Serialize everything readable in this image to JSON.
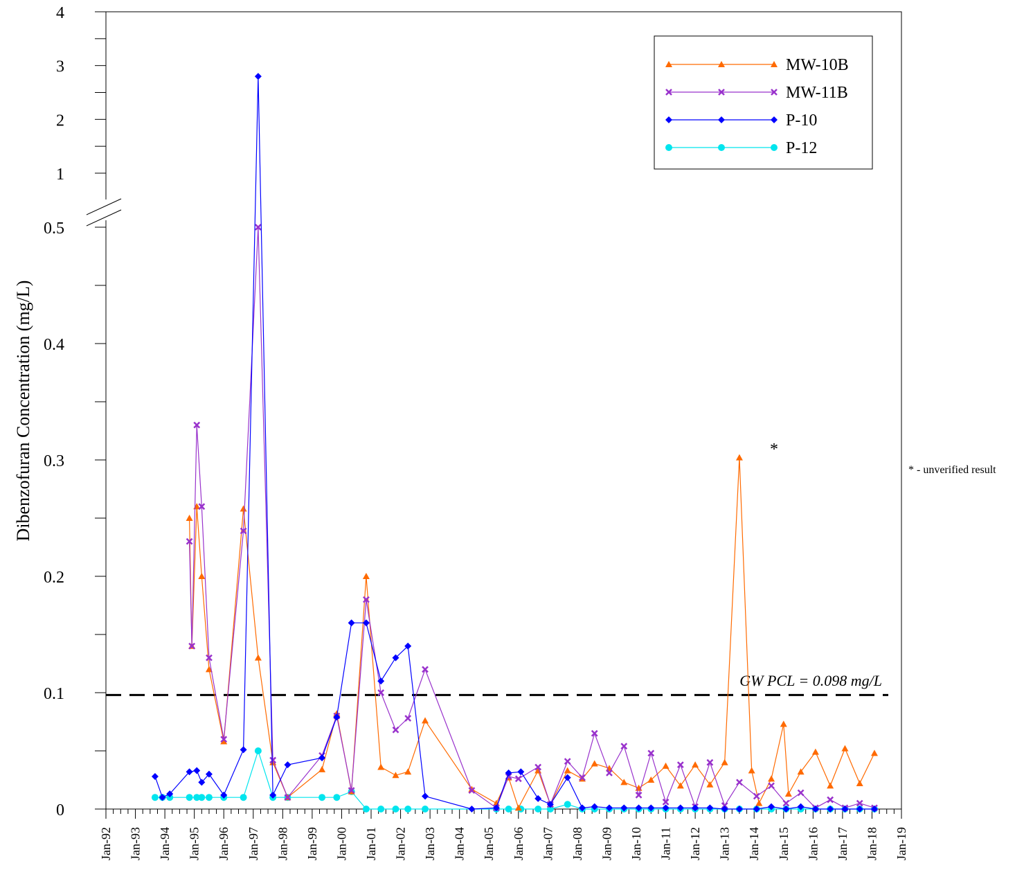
{
  "chart_data": {
    "type": "line",
    "ylabel": "Dibenzofuran Concentration (mg/L)",
    "y_ticks": [
      "0",
      "0.1",
      "0.2",
      "0.3",
      "0.4",
      "0.5",
      "1",
      "2",
      "3",
      "4"
    ],
    "axis_break": "between 0.5 and 1",
    "x_tick_labels": [
      "Jan-92",
      "Jan-93",
      "Jan-94",
      "Jan-95",
      "Jan-96",
      "Jan-97",
      "Jan-98",
      "Jan-99",
      "Jan-00",
      "Jan-01",
      "Jan-02",
      "Jan-03",
      "Jan-04",
      "Jan-05",
      "Jan-06",
      "Jan-07",
      "Jan-08",
      "Jan-09",
      "Jan-10",
      "Jan-11",
      "Jan-12",
      "Jan-13",
      "Jan-14",
      "Jan-15",
      "Jan-16",
      "Jan-17",
      "Jan-18",
      "Jan-19"
    ],
    "reference_line": {
      "value": 0.098,
      "label": "GW PCL = 0.098 mg/L"
    },
    "annotation": {
      "marker": "*",
      "note": "* - unverified result"
    },
    "legend_position": "top-right",
    "series": [
      {
        "name": "MW-10B",
        "color": "#FF6A00",
        "marker": "triangle",
        "points": [
          [
            "Nov-94",
            0.25
          ],
          [
            "Dec-94",
            0.14
          ],
          [
            "Feb-95",
            0.26
          ],
          [
            "Apr-95",
            0.2
          ],
          [
            "Jul-95",
            0.12
          ],
          [
            "Jan-96",
            0.058
          ],
          [
            "Sep-96",
            0.258
          ],
          [
            "Mar-97",
            0.13
          ],
          [
            "Sep-97",
            0.04
          ],
          [
            "Mar-98",
            0.01
          ],
          [
            "May-99",
            0.034
          ],
          [
            "Nov-99",
            0.082
          ],
          [
            "May-00",
            0.015
          ],
          [
            "Nov-00",
            0.2
          ],
          [
            "May-01",
            0.036
          ],
          [
            "Nov-01",
            0.029
          ],
          [
            "Apr-02",
            0.032
          ],
          [
            "Nov-02",
            0.076
          ],
          [
            "Jun-04",
            0.017
          ],
          [
            "Apr-05",
            0.005
          ],
          [
            "Sep-05",
            0.027
          ],
          [
            "Jan-06",
            0.001
          ],
          [
            "Sep-06",
            0.033
          ],
          [
            "Feb-07",
            0.004
          ],
          [
            "Sep-07",
            0.033
          ],
          [
            "Mar-08",
            0.026
          ],
          [
            "Aug-08",
            0.039
          ],
          [
            "Feb-09",
            0.035
          ],
          [
            "Aug-09",
            0.023
          ],
          [
            "Feb-10",
            0.018
          ],
          [
            "Jul-10",
            0.025
          ],
          [
            "Jan-11",
            0.037
          ],
          [
            "Jul-11",
            0.02
          ],
          [
            "Jan-12",
            0.038
          ],
          [
            "Jul-12",
            0.021
          ],
          [
            "Jan-13",
            0.04
          ],
          [
            "Jul-13",
            0.302
          ],
          [
            "Dec-13",
            0.033
          ],
          [
            "Mar-14",
            0.005
          ],
          [
            "Aug-14",
            0.026
          ],
          [
            "Jan-15",
            0.073
          ],
          [
            "Mar-15",
            0.013
          ],
          [
            "Aug-15",
            0.032
          ],
          [
            "Feb-16",
            0.049
          ],
          [
            "Aug-16",
            0.02
          ],
          [
            "Feb-17",
            0.052
          ],
          [
            "Aug-17",
            0.022
          ],
          [
            "Feb-18",
            0.048
          ]
        ]
      },
      {
        "name": "MW-11B",
        "color": "#9932CC",
        "marker": "x",
        "points": [
          [
            "Nov-94",
            0.23
          ],
          [
            "Dec-94",
            0.14
          ],
          [
            "Feb-95",
            0.33
          ],
          [
            "Apr-95",
            0.26
          ],
          [
            "Jul-95",
            0.13
          ],
          [
            "Jan-96",
            0.06
          ],
          [
            "Sep-96",
            0.239
          ],
          [
            "Mar-97",
            0.5
          ],
          [
            "Sep-97",
            0.042
          ],
          [
            "Mar-98",
            0.01
          ],
          [
            "May-99",
            0.046
          ],
          [
            "Nov-99",
            0.08
          ],
          [
            "May-00",
            0.016
          ],
          [
            "Nov-00",
            0.18
          ],
          [
            "May-01",
            0.1
          ],
          [
            "Nov-01",
            0.068
          ],
          [
            "Apr-02",
            0.078
          ],
          [
            "Nov-02",
            0.12
          ],
          [
            "Jun-04",
            0.016
          ],
          [
            "Apr-05",
            0.001
          ],
          [
            "Sep-05",
            0.028
          ],
          [
            "Jan-06",
            0.026
          ],
          [
            "Sep-06",
            0.036
          ],
          [
            "Feb-07",
            0.004
          ],
          [
            "Sep-07",
            0.041
          ],
          [
            "Mar-08",
            0.027
          ],
          [
            "Aug-08",
            0.065
          ],
          [
            "Feb-09",
            0.031
          ],
          [
            "Aug-09",
            0.054
          ],
          [
            "Feb-10",
            0.012
          ],
          [
            "Jul-10",
            0.048
          ],
          [
            "Jan-11",
            0.006
          ],
          [
            "Jul-11",
            0.038
          ],
          [
            "Jan-12",
            0.002
          ],
          [
            "Jul-12",
            0.04
          ],
          [
            "Jan-13",
            0.003
          ],
          [
            "Jul-13",
            0.023
          ],
          [
            "Feb-14",
            0.011
          ],
          [
            "Aug-14",
            0.02
          ],
          [
            "Feb-15",
            0.005
          ],
          [
            "Aug-15",
            0.014
          ],
          [
            "Feb-16",
            0.001
          ],
          [
            "Aug-16",
            0.008
          ],
          [
            "Feb-17",
            0.001
          ],
          [
            "Aug-17",
            0.005
          ],
          [
            "Feb-18",
            0.001
          ]
        ]
      },
      {
        "name": "P-10",
        "color": "#0000FF",
        "marker": "diamond",
        "points": [
          [
            "Sep-93",
            0.028
          ],
          [
            "Dec-93",
            0.01
          ],
          [
            "Mar-94",
            0.013
          ],
          [
            "Nov-94",
            0.032
          ],
          [
            "Feb-95",
            0.033
          ],
          [
            "Apr-95",
            0.023
          ],
          [
            "Jul-95",
            0.03
          ],
          [
            "Jan-96",
            0.012
          ],
          [
            "Sep-96",
            0.051
          ],
          [
            "Mar-97",
            2.8
          ],
          [
            "Sep-97",
            0.012
          ],
          [
            "Mar-98",
            0.038
          ],
          [
            "May-99",
            0.044
          ],
          [
            "Nov-99",
            0.079
          ],
          [
            "May-00",
            0.16
          ],
          [
            "Nov-00",
            0.16
          ],
          [
            "May-01",
            0.11
          ],
          [
            "Nov-01",
            0.13
          ],
          [
            "Apr-02",
            0.14
          ],
          [
            "Nov-02",
            0.011
          ],
          [
            "Jun-04",
            0.0
          ],
          [
            "Apr-05",
            0.001
          ],
          [
            "Sep-05",
            0.031
          ],
          [
            "Feb-06",
            0.032
          ],
          [
            "Sep-06",
            0.009
          ],
          [
            "Feb-07",
            0.004
          ],
          [
            "Sep-07",
            0.027
          ],
          [
            "Mar-08",
            0.001
          ],
          [
            "Aug-08",
            0.002
          ],
          [
            "Feb-09",
            0.001
          ],
          [
            "Aug-09",
            0.001
          ],
          [
            "Feb-10",
            0.001
          ],
          [
            "Jul-10",
            0.001
          ],
          [
            "Jan-11",
            0.001
          ],
          [
            "Jul-11",
            0.001
          ],
          [
            "Jan-12",
            0.001
          ],
          [
            "Jul-12",
            0.001
          ],
          [
            "Jan-13",
            0.0
          ],
          [
            "Jul-13",
            0.0
          ],
          [
            "Feb-14",
            0.0
          ],
          [
            "Aug-14",
            0.002
          ],
          [
            "Feb-15",
            0.0
          ],
          [
            "Aug-15",
            0.002
          ],
          [
            "Feb-16",
            0.0
          ],
          [
            "Aug-16",
            0.0
          ],
          [
            "Feb-17",
            0.0
          ],
          [
            "Aug-17",
            0.0
          ],
          [
            "Feb-18",
            0.0
          ]
        ]
      },
      {
        "name": "P-12",
        "color": "#00E5EE",
        "marker": "circle",
        "points": [
          [
            "Sep-93",
            0.01
          ],
          [
            "Dec-93",
            0.01
          ],
          [
            "Mar-94",
            0.01
          ],
          [
            "Nov-94",
            0.01
          ],
          [
            "Feb-95",
            0.01
          ],
          [
            "Apr-95",
            0.01
          ],
          [
            "Jul-95",
            0.01
          ],
          [
            "Jan-96",
            0.01
          ],
          [
            "Sep-96",
            0.01
          ],
          [
            "Mar-97",
            0.05
          ],
          [
            "Sep-97",
            0.01
          ],
          [
            "Mar-98",
            0.01
          ],
          [
            "May-99",
            0.01
          ],
          [
            "Nov-99",
            0.01
          ],
          [
            "May-00",
            0.015
          ],
          [
            "Nov-00",
            0.0
          ],
          [
            "May-01",
            0.0
          ],
          [
            "Nov-01",
            0.0
          ],
          [
            "Apr-02",
            0.0
          ],
          [
            "Nov-02",
            0.0
          ],
          [
            "Apr-05",
            0.0
          ],
          [
            "Sep-05",
            0.0
          ],
          [
            "Feb-06",
            0.0
          ],
          [
            "Sep-06",
            0.0
          ],
          [
            "Feb-07",
            0.0
          ],
          [
            "Sep-07",
            0.004
          ],
          [
            "Mar-08",
            0.0
          ],
          [
            "Aug-08",
            0.0
          ],
          [
            "Feb-09",
            0.0
          ],
          [
            "Aug-09",
            0.0
          ],
          [
            "Feb-10",
            0.0
          ],
          [
            "Jul-10",
            0.0
          ],
          [
            "Jan-11",
            0.0
          ],
          [
            "Jul-11",
            0.0
          ],
          [
            "Jan-12",
            0.0
          ],
          [
            "Jul-12",
            0.0
          ],
          [
            "Jan-13",
            0.0
          ],
          [
            "Jul-13",
            0.0
          ],
          [
            "Feb-14",
            0.0
          ],
          [
            "Aug-14",
            0.0
          ],
          [
            "Feb-15",
            0.0
          ],
          [
            "Aug-15",
            0.0
          ],
          [
            "Feb-16",
            0.0
          ],
          [
            "Aug-16",
            0.0
          ],
          [
            "Feb-17",
            0.0
          ],
          [
            "Aug-17",
            0.0
          ],
          [
            "Feb-18",
            0.0
          ]
        ]
      }
    ]
  }
}
